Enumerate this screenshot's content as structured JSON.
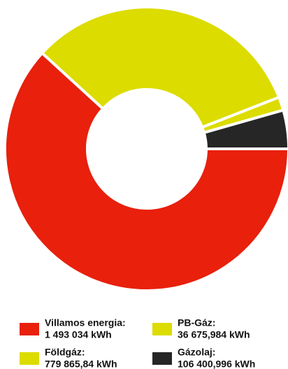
{
  "chart_data": {
    "type": "donut",
    "categories": [
      "Villamos energia:",
      "Földgáz:",
      "PB-Gáz:",
      "Gázolaj:"
    ],
    "values": [
      1493034,
      779865.84,
      36675.984,
      106400.996
    ],
    "value_labels": [
      "1 493 034 kWh",
      "779 865,84 kWh",
      "36 675,984 kWh",
      "106 400,996 kWh"
    ],
    "colors": [
      "#e8200c",
      "#dcdc00",
      "#dcdc00",
      "#262626"
    ]
  }
}
